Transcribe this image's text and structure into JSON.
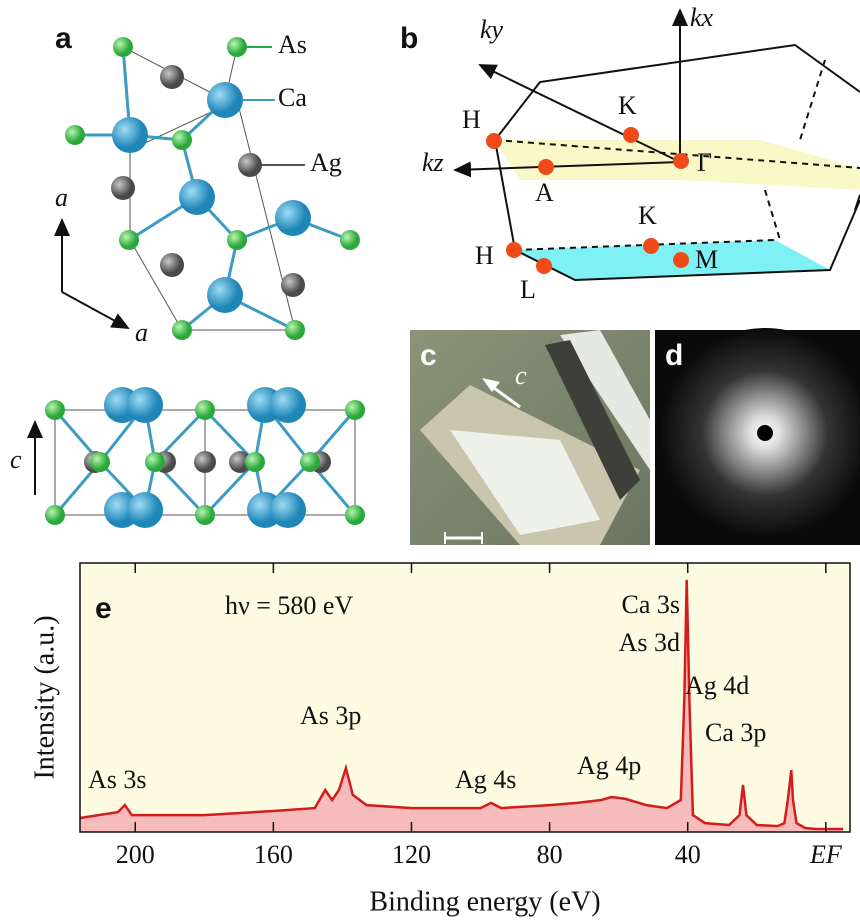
{
  "panel_labels": [
    "a",
    "b",
    "c",
    "d",
    "e"
  ],
  "panel_a": {
    "atoms": [
      "As",
      "Ca",
      "Ag"
    ],
    "axes": [
      "a",
      "a",
      "c"
    ]
  },
  "panel_b": {
    "axes": [
      "ky",
      "kx",
      "kz"
    ],
    "points": [
      "H",
      "K",
      "Γ",
      "A",
      "K",
      "H",
      "L",
      "M"
    ]
  },
  "panel_c": {
    "axis": "c"
  },
  "chart_data": {
    "type": "area",
    "x_label": "Binding energy (eV)",
    "y_label": "Intensity (a.u.)",
    "annotations": [
      "hν = 580 eV",
      "As 3s",
      "As 3p",
      "Ag 4s",
      "Ag 4p",
      "Ca 3s",
      "As 3d",
      "Ca 3p",
      "Ag 4d"
    ],
    "x": [
      216,
      205,
      203,
      201,
      180,
      160,
      148,
      145,
      143,
      141,
      139,
      137,
      133,
      120,
      100,
      97,
      94,
      80,
      72,
      65,
      62,
      58,
      52,
      46,
      42,
      41,
      40.3,
      39.5,
      38.5,
      35,
      28,
      25,
      24,
      23,
      20,
      14,
      12,
      11,
      10,
      9.5,
      8.5,
      6,
      3,
      0,
      -5
    ],
    "values": [
      5.2,
      7.4,
      10,
      6.3,
      6.3,
      7.8,
      8.9,
      15.6,
      11.9,
      15.6,
      23.8,
      13.8,
      10,
      8.9,
      8.9,
      10.8,
      8.9,
      10,
      10.8,
      11.9,
      13,
      12.3,
      10,
      8.9,
      11.9,
      49,
      93.7,
      49,
      6.3,
      3.3,
      2.6,
      6.3,
      17.5,
      6.3,
      2.6,
      2.2,
      3.3,
      11.9,
      23,
      11.9,
      3.3,
      1.5,
      1.1,
      1.1,
      1.1
    ],
    "color": "#d41c1c",
    "fill": "#f6bcbc",
    "background": "#fdfbe2",
    "xlim": [
      216,
      -7
    ],
    "ylim": [
      0,
      100
    ],
    "xticks": [
      200,
      160,
      120,
      80,
      40,
      {
        "value": 0,
        "label": "EF"
      }
    ]
  }
}
